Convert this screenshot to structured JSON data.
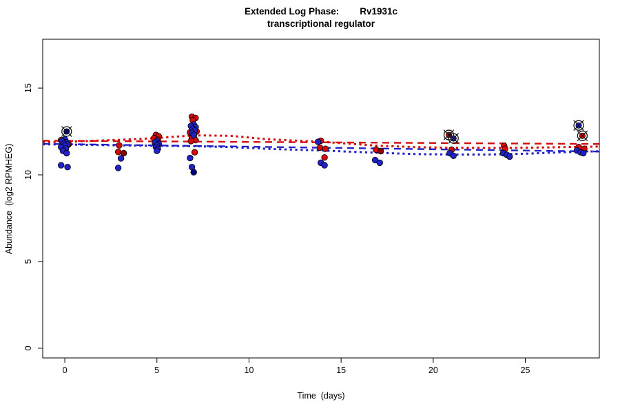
{
  "title": {
    "line1": "Extended Log Phase:        Rv1931c",
    "line2": "transcriptional regulator"
  },
  "colors": {
    "red": "#d40b0b",
    "dark_red": "#8b0000",
    "blue": "#2121c8",
    "navy": "#000080",
    "point_outline": "#000000",
    "circled_marker": "#111111",
    "axis": "#000000"
  },
  "chart_data": {
    "type": "scatter",
    "title": "Extended Log Phase:        Rv1931c  /  transcriptional regulator",
    "xlabel": "Time  (days)",
    "ylabel": "Abundance  (log2 RPMHEG)",
    "xlim": [
      -1.2,
      29.02
    ],
    "ylim": [
      -0.56,
      17.82
    ],
    "x_ticks": [
      0,
      5,
      10,
      15,
      20,
      25
    ],
    "y_ticks": [
      0,
      5,
      10,
      15
    ],
    "grid": false,
    "legend": "none",
    "series": [
      {
        "name": "red-points",
        "color_key": "red",
        "points": [
          [
            -0.2,
            12.0
          ],
          [
            0.2,
            11.75
          ],
          [
            2.95,
            11.7
          ],
          [
            2.9,
            11.32
          ],
          [
            4.95,
            12.3
          ],
          [
            5.1,
            12.22
          ],
          [
            4.85,
            12.12
          ],
          [
            5.05,
            12.02
          ],
          [
            6.9,
            13.35
          ],
          [
            7.1,
            13.28
          ],
          [
            6.95,
            13.15
          ],
          [
            7.15,
            12.5
          ],
          [
            6.8,
            12.45
          ],
          [
            7.0,
            12.25
          ],
          [
            6.9,
            12.12
          ],
          [
            7.1,
            12.0
          ],
          [
            6.85,
            11.95
          ],
          [
            7.05,
            11.3
          ],
          [
            13.9,
            11.97
          ],
          [
            13.85,
            11.57
          ],
          [
            14.15,
            11.5
          ],
          [
            14.1,
            11.0
          ],
          [
            16.9,
            11.45
          ],
          [
            21.0,
            11.45
          ],
          [
            23.85,
            11.67
          ],
          [
            23.9,
            11.5
          ],
          [
            27.9,
            11.6
          ],
          [
            28.2,
            11.5
          ]
        ]
      },
      {
        "name": "dark-red-points",
        "color_key": "dark_red",
        "points": [
          [
            3.2,
            11.25
          ],
          [
            5.0,
            11.9
          ],
          [
            17.15,
            11.37
          ]
        ]
      },
      {
        "name": "blue-points",
        "color_key": "blue",
        "points": [
          [
            0.0,
            12.05
          ],
          [
            -0.15,
            11.95
          ],
          [
            0.1,
            11.88
          ],
          [
            -0.05,
            11.8
          ],
          [
            0.15,
            11.75
          ],
          [
            0.0,
            11.68
          ],
          [
            -0.2,
            11.6
          ],
          [
            0.05,
            11.5
          ],
          [
            -0.1,
            11.38
          ],
          [
            0.1,
            11.25
          ],
          [
            -0.2,
            10.55
          ],
          [
            0.15,
            10.45
          ],
          [
            3.05,
            10.95
          ],
          [
            2.9,
            10.4
          ],
          [
            5.0,
            11.95
          ],
          [
            4.9,
            11.85
          ],
          [
            5.1,
            11.78
          ],
          [
            5.0,
            11.7
          ],
          [
            4.95,
            11.6
          ],
          [
            5.05,
            11.5
          ],
          [
            5.0,
            11.38
          ],
          [
            7.0,
            12.9
          ],
          [
            6.85,
            12.82
          ],
          [
            7.1,
            12.75
          ],
          [
            6.95,
            12.65
          ],
          [
            7.05,
            12.55
          ],
          [
            6.9,
            12.42
          ],
          [
            7.0,
            12.3
          ],
          [
            6.8,
            10.97
          ],
          [
            6.9,
            10.45
          ],
          [
            13.75,
            11.9
          ],
          [
            13.9,
            10.7
          ],
          [
            14.1,
            10.55
          ],
          [
            16.85,
            10.85
          ],
          [
            17.1,
            10.7
          ],
          [
            20.9,
            11.25
          ],
          [
            21.1,
            11.1
          ],
          [
            23.8,
            11.25
          ],
          [
            24.0,
            11.15
          ],
          [
            24.15,
            11.05
          ],
          [
            27.8,
            11.4
          ],
          [
            28.0,
            11.3
          ],
          [
            28.15,
            11.25
          ]
        ]
      },
      {
        "name": "navy-points",
        "color_key": "navy",
        "points": [
          [
            7.0,
            10.15
          ]
        ]
      }
    ],
    "circled_points": [
      {
        "x": 0.1,
        "y": 12.5,
        "color_key": "navy"
      },
      {
        "x": 20.85,
        "y": 12.3,
        "color_key": "red"
      },
      {
        "x": 21.1,
        "y": 12.1,
        "color_key": "blue"
      },
      {
        "x": 27.9,
        "y": 12.85,
        "color_key": "blue"
      },
      {
        "x": 28.1,
        "y": 12.25,
        "color_key": "red"
      }
    ],
    "trend_lines": [
      {
        "name": "blue-linear-fit",
        "color_key": "blue",
        "style": "longdash",
        "points": [
          [
            -1.2,
            11.79
          ],
          [
            29.0,
            11.34
          ]
        ]
      },
      {
        "name": "blue-smooth-fit",
        "color_key": "blue",
        "style": "dotted",
        "points": [
          [
            -1.2,
            11.76
          ],
          [
            0,
            11.75
          ],
          [
            3,
            11.7
          ],
          [
            5,
            11.68
          ],
          [
            7,
            11.65
          ],
          [
            9,
            11.6
          ],
          [
            11,
            11.5
          ],
          [
            14,
            11.4
          ],
          [
            17,
            11.27
          ],
          [
            19,
            11.2
          ],
          [
            21,
            11.17
          ],
          [
            23,
            11.17
          ],
          [
            25,
            11.22
          ],
          [
            27,
            11.3
          ],
          [
            29,
            11.36
          ]
        ]
      },
      {
        "name": "red-linear-fit",
        "color_key": "red",
        "style": "longdash",
        "points": [
          [
            -1.2,
            11.97
          ],
          [
            29.0,
            11.78
          ]
        ]
      },
      {
        "name": "red-smooth-fit",
        "color_key": "red",
        "style": "dotted",
        "points": [
          [
            -1.2,
            11.88
          ],
          [
            0,
            11.9
          ],
          [
            3,
            12.02
          ],
          [
            5,
            12.12
          ],
          [
            7,
            12.28
          ],
          [
            9,
            12.25
          ],
          [
            11,
            12.05
          ],
          [
            14,
            11.9
          ],
          [
            17,
            11.68
          ],
          [
            19,
            11.6
          ],
          [
            21,
            11.56
          ],
          [
            24,
            11.55
          ],
          [
            26,
            11.58
          ],
          [
            29,
            11.63
          ]
        ]
      }
    ]
  }
}
